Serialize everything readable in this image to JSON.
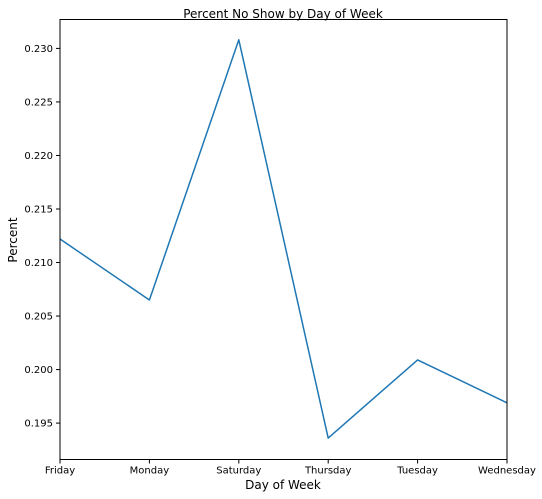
{
  "chart_data": {
    "type": "line",
    "title": "Percent No Show by Day of Week",
    "xlabel": "Day of Week",
    "ylabel": "Percent",
    "categories": [
      "Friday",
      "Monday",
      "Saturday",
      "Thursday",
      "Tuesday",
      "Wednesday"
    ],
    "series": [
      {
        "values": [
          0.2122,
          0.2065,
          0.2308,
          0.1936,
          0.2009,
          0.1969
        ],
        "color": "#1f77b4"
      }
    ],
    "ylim": [
      0.1916,
      0.2327
    ],
    "yticks": [
      0.195,
      0.2,
      0.205,
      0.21,
      0.215,
      0.22,
      0.225,
      0.23
    ],
    "ytick_labels": [
      "0.195",
      "0.200",
      "0.205",
      "0.210",
      "0.215",
      "0.220",
      "0.225",
      "0.230"
    ],
    "grid": false,
    "legend": false
  }
}
